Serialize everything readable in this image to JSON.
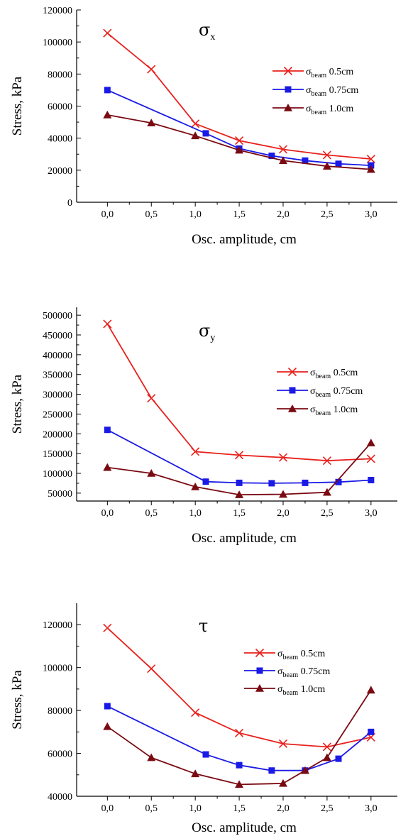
{
  "colors": {
    "red": "#e8201c",
    "blue": "#1a1ae6",
    "darkred": "#7a0a12",
    "axis": "#000000"
  },
  "legend_entries": [
    {
      "symbol": "σ",
      "sub": "beam",
      "suffix": " 0.5cm",
      "marker": "x",
      "color": "#e8201c"
    },
    {
      "symbol": "σ",
      "sub": "beam",
      "suffix": " 0.75cm",
      "marker": "square",
      "color": "#1a1ae6"
    },
    {
      "symbol": "σ",
      "sub": "beam",
      "suffix": " 1.0cm",
      "marker": "triangle",
      "color": "#7a0a12"
    }
  ],
  "chart_data": [
    {
      "type": "line",
      "title": "σ",
      "title_sub": "x",
      "xlabel": "Osc. amplitude, cm",
      "ylabel": "Stress, kPa",
      "xlim": [
        -0.35,
        3.3
      ],
      "ylim": [
        0,
        120000
      ],
      "xticks": [
        0,
        0.5,
        1.0,
        1.5,
        2.0,
        2.5,
        3.0
      ],
      "xtick_labels": [
        "0,0",
        "0,5",
        "1,0",
        "1,5",
        "2,0",
        "2,5",
        "3,0"
      ],
      "yticks": [
        0,
        20000,
        40000,
        60000,
        80000,
        100000,
        120000
      ],
      "ytick_labels": [
        "0",
        "20000",
        "40000",
        "60000",
        "80000",
        "100000",
        "120000"
      ],
      "legend": "right",
      "series": [
        {
          "name": "σbeam 0.5cm",
          "marker": "x",
          "color": "#e8201c",
          "x": [
            0,
            0.5,
            1.0,
            1.5,
            2.0,
            2.5,
            3.0
          ],
          "y": [
            105500,
            83000,
            49000,
            38500,
            33000,
            29500,
            27000
          ]
        },
        {
          "name": "σbeam 0.75cm",
          "marker": "square",
          "color": "#1a1ae6",
          "x": [
            0,
            1.12,
            1.5,
            1.87,
            2.25,
            2.63,
            3.0
          ],
          "y": [
            70000,
            43000,
            33500,
            29000,
            26000,
            24000,
            23000
          ]
        },
        {
          "name": "σbeam 1.0cm",
          "marker": "triangle",
          "color": "#7a0a12",
          "x": [
            0,
            0.5,
            1.0,
            1.5,
            2.0,
            2.5,
            3.0
          ],
          "y": [
            54500,
            49500,
            41500,
            32500,
            26000,
            22500,
            20500
          ]
        }
      ]
    },
    {
      "type": "line",
      "title": "σ",
      "title_sub": "y",
      "xlabel": "Osc. amplitude, cm",
      "ylabel": "Stress, kPa",
      "xlim": [
        -0.35,
        3.3
      ],
      "ylim": [
        30000,
        520000
      ],
      "xticks": [
        0,
        0.5,
        1.0,
        1.5,
        2.0,
        2.5,
        3.0
      ],
      "xtick_labels": [
        "0,0",
        "0,5",
        "1,0",
        "1,5",
        "2,0",
        "2,5",
        "3,0"
      ],
      "yticks": [
        50000,
        100000,
        150000,
        200000,
        250000,
        300000,
        350000,
        400000,
        450000,
        500000
      ],
      "ytick_labels": [
        "50000",
        "100000",
        "150000",
        "200000",
        "250000",
        "300000",
        "350000",
        "400000",
        "450000",
        "500000"
      ],
      "legend": "right",
      "series": [
        {
          "name": "σbeam 0.5cm",
          "marker": "x",
          "color": "#e8201c",
          "x": [
            0,
            0.5,
            1.0,
            1.5,
            2.0,
            2.5,
            3.0
          ],
          "y": [
            478000,
            290000,
            155000,
            146000,
            140000,
            132000,
            137000
          ]
        },
        {
          "name": "σbeam 0.75cm",
          "marker": "square",
          "color": "#1a1ae6",
          "x": [
            0,
            1.12,
            1.5,
            1.87,
            2.25,
            2.63,
            3.0
          ],
          "y": [
            210000,
            79000,
            76000,
            75000,
            76000,
            78000,
            83000
          ]
        },
        {
          "name": "σbeam 1.0cm",
          "marker": "triangle",
          "color": "#7a0a12",
          "x": [
            0,
            0.5,
            1.0,
            1.5,
            2.0,
            2.5,
            3.0
          ],
          "y": [
            115000,
            100000,
            66000,
            46000,
            47000,
            52000,
            177000
          ]
        }
      ]
    },
    {
      "type": "line",
      "title": "τ",
      "title_sub": "",
      "xlabel": "Osc. amplitude, cm",
      "ylabel": "Stress, kPa",
      "xlim": [
        -0.35,
        3.3
      ],
      "ylim": [
        40000,
        130000
      ],
      "xticks": [
        0,
        0.5,
        1.0,
        1.5,
        2.0,
        2.5,
        3.0
      ],
      "xtick_labels": [
        "0,0",
        "0,5",
        "1,0",
        "1,5",
        "2,0",
        "2,5",
        "3,0"
      ],
      "yticks": [
        40000,
        60000,
        80000,
        100000,
        120000
      ],
      "ytick_labels": [
        "40000",
        "60000",
        "80000",
        "100000",
        "120000"
      ],
      "legend": "right",
      "series": [
        {
          "name": "σbeam 0.5cm",
          "marker": "x",
          "color": "#e8201c",
          "x": [
            0,
            0.5,
            1.0,
            1.5,
            2.0,
            2.5,
            3.0
          ],
          "y": [
            118500,
            99500,
            79000,
            69500,
            64500,
            63000,
            67500
          ]
        },
        {
          "name": "σbeam 0.75cm",
          "marker": "square",
          "color": "#1a1ae6",
          "x": [
            0,
            1.12,
            1.5,
            1.87,
            2.25,
            2.63,
            3.0
          ],
          "y": [
            82000,
            59500,
            54500,
            52000,
            52000,
            57500,
            70000
          ]
        },
        {
          "name": "σbeam 1.0cm",
          "marker": "triangle",
          "color": "#7a0a12",
          "x": [
            0,
            0.5,
            1.0,
            1.5,
            2.0,
            2.25,
            2.5,
            3.0
          ],
          "y": [
            72500,
            58000,
            50500,
            45500,
            46000,
            52000,
            58000,
            89500
          ]
        }
      ]
    }
  ]
}
